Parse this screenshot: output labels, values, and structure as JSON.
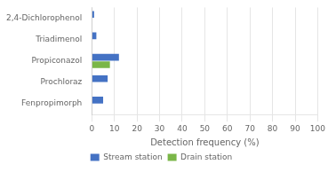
{
  "chart_data": {
    "type": "bar",
    "orientation": "horizontal",
    "categories": [
      "Fenpropimorph",
      "Prochloraz",
      "Propiconazol",
      "Triadimenol",
      "2,4-Dichlorophenol"
    ],
    "series": [
      {
        "name": "Stream station",
        "color": "#4472c4",
        "values": [
          5,
          7,
          12,
          2,
          1
        ]
      },
      {
        "name": "Drain station",
        "color": "#7ab648",
        "values": [
          0,
          0,
          8,
          0,
          0
        ]
      }
    ],
    "xlabel": "Detection frequency (%)",
    "xlim": [
      0,
      100
    ],
    "xticks": [
      0,
      10,
      20,
      30,
      40,
      50,
      60,
      70,
      80,
      90,
      100
    ],
    "grid": true,
    "legend": "bottom"
  }
}
